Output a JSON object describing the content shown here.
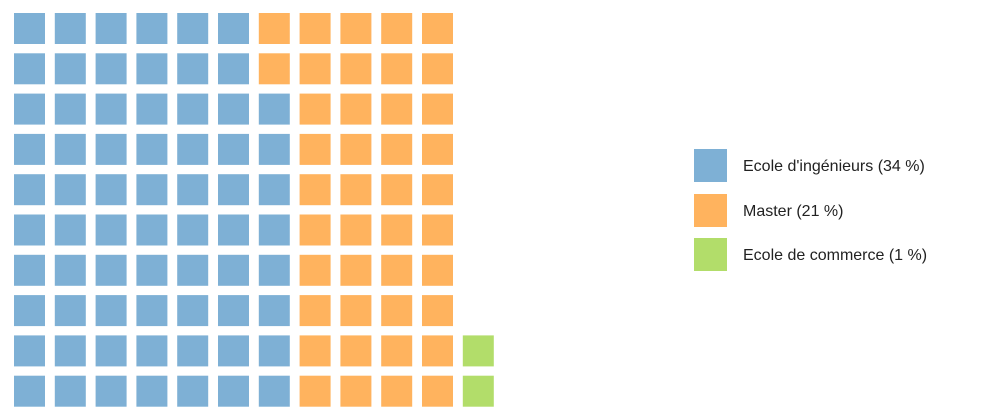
{
  "chart_data": {
    "type": "waffle",
    "units_per_series": [
      68,
      42,
      2
    ],
    "series": [
      {
        "name": "Ecole d'ingénieurs",
        "value": 34,
        "label": "Ecole d'ingénieurs (34 %)",
        "color": "#7eb0d5"
      },
      {
        "name": "Master",
        "value": 21,
        "label": "Master (21 %)",
        "color": "#ffb35e"
      },
      {
        "name": "Ecole de commerce",
        "value": 1,
        "label": "Ecole de commerce (1 %)",
        "color": "#b2dd6a"
      }
    ],
    "legend_position": "right"
  }
}
